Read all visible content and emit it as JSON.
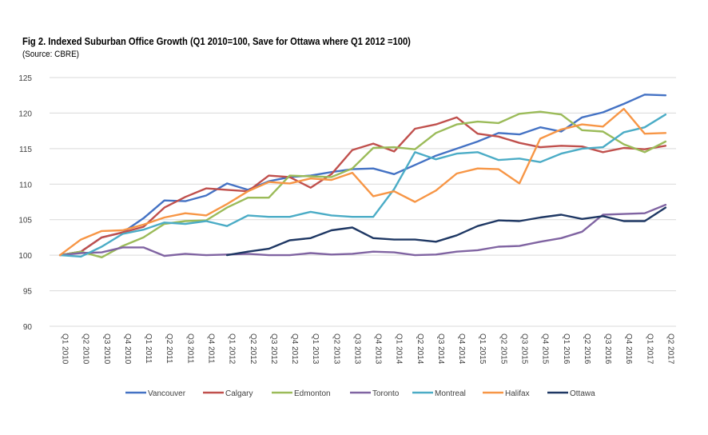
{
  "chart_data": {
    "type": "line",
    "title": "Fig 2. Indexed Suburban Office Growth (Q1 2010=100, Save for Ottawa where Q1 2012 =100)",
    "subtitle": "(Source: CBRE)",
    "xlabel": "",
    "ylabel": "",
    "ylim": [
      90,
      125
    ],
    "yticks": [
      90,
      95,
      100,
      105,
      110,
      115,
      120,
      125
    ],
    "grid": true,
    "legend_position": "bottom",
    "categories": [
      "Q1 2010",
      "Q2 2010",
      "Q3 2010",
      "Q4 2010",
      "Q1 2011",
      "Q2 2011",
      "Q3 2011",
      "Q4 2011",
      "Q1 2012",
      "Q2 2012",
      "Q3 2012",
      "Q4 2012",
      "Q1 2013",
      "Q2 2013",
      "Q3 2013",
      "Q4 2013",
      "Q1 2014",
      "Q2 2014",
      "Q3 2014",
      "Q4 2014",
      "Q1 2015",
      "Q2 2015",
      "Q3 2015",
      "Q4 2015",
      "Q1 2016",
      "Q2 2016",
      "Q3 2016",
      "Q4 2016",
      "Q1 2017",
      "Q2 2017"
    ],
    "series": [
      {
        "name": "Vancouver",
        "color": "#4472C4",
        "values": [
          100,
          100.5,
          102.5,
          103.2,
          105.2,
          107.7,
          107.6,
          108.4,
          110.1,
          109.2,
          110.4,
          111.0,
          111.2,
          111.7,
          112.1,
          112.2,
          111.4,
          112.7,
          114.0,
          115.0,
          116.0,
          117.2,
          117.0,
          118.0,
          117.4,
          119.4,
          120.1,
          121.3,
          122.6,
          122.5
        ]
      },
      {
        "name": "Calgary",
        "color": "#C0504D",
        "values": [
          100,
          100.5,
          102.5,
          103.2,
          104.0,
          106.7,
          108.2,
          109.4,
          109.2,
          109.0,
          111.2,
          111.0,
          109.5,
          111.4,
          114.8,
          115.7,
          114.6,
          117.8,
          118.4,
          119.4,
          117.1,
          116.7,
          115.8,
          115.2,
          115.4,
          115.3,
          114.5,
          115.1,
          114.9,
          115.4
        ]
      },
      {
        "name": "Edmonton",
        "color": "#9BBB59",
        "values": [
          100,
          100.5,
          99.7,
          101.3,
          102.5,
          104.4,
          104.8,
          104.9,
          106.7,
          108.1,
          108.1,
          111.2,
          111.1,
          111.0,
          112.2,
          115.1,
          115.2,
          114.9,
          117.2,
          118.4,
          118.8,
          118.6,
          119.9,
          120.2,
          119.8,
          117.6,
          117.4,
          115.6,
          114.5,
          116.0
        ]
      },
      {
        "name": "Toronto",
        "color": "#8064A2",
        "values": [
          100,
          100.3,
          100.4,
          101.1,
          101.1,
          99.9,
          100.2,
          100.0,
          100.1,
          100.2,
          100.0,
          100.0,
          100.3,
          100.1,
          100.2,
          100.5,
          100.4,
          100.0,
          100.1,
          100.5,
          100.7,
          101.2,
          101.3,
          101.9,
          102.4,
          103.3,
          105.7,
          105.8,
          105.9,
          107.1
        ]
      },
      {
        "name": "Montreal",
        "color": "#4BACC6",
        "values": [
          100,
          99.8,
          101.2,
          103.0,
          103.6,
          104.6,
          104.4,
          104.8,
          104.1,
          105.6,
          105.4,
          105.4,
          106.1,
          105.6,
          105.4,
          105.4,
          109.3,
          114.5,
          113.5,
          114.3,
          114.5,
          113.4,
          113.6,
          113.1,
          114.3,
          115.0,
          115.2,
          117.3,
          118.0,
          119.8
        ]
      },
      {
        "name": "Halifax",
        "color": "#F79646",
        "values": [
          100,
          102.2,
          103.4,
          103.5,
          104.3,
          105.3,
          105.9,
          105.6,
          107.2,
          109.0,
          110.3,
          110.1,
          110.8,
          110.6,
          111.6,
          108.3,
          109.0,
          107.5,
          109.1,
          111.5,
          112.2,
          112.1,
          110.1,
          116.4,
          117.7,
          118.4,
          118.1,
          120.6,
          117.1,
          117.2
        ]
      },
      {
        "name": "Ottawa",
        "color": "#1F3864",
        "values": [
          null,
          null,
          null,
          null,
          null,
          null,
          null,
          null,
          100,
          100.5,
          100.9,
          102.1,
          102.4,
          103.5,
          103.9,
          102.4,
          102.2,
          102.2,
          101.9,
          102.8,
          104.1,
          104.9,
          104.8,
          105.3,
          105.7,
          105.1,
          105.5,
          104.8,
          104.8,
          106.7
        ]
      }
    ]
  }
}
